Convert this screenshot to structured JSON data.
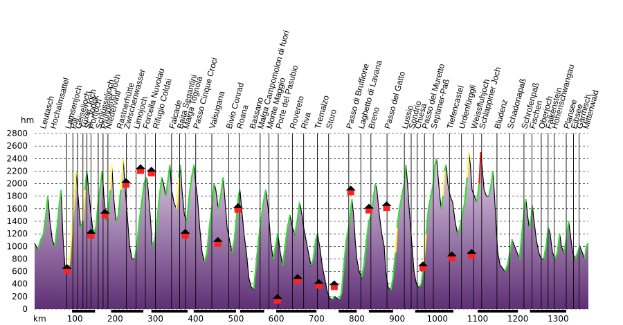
{
  "chart_data": {
    "type": "area",
    "title": "",
    "xlabel": "km",
    "ylabel": "hm",
    "xlim": [
      0,
      1375
    ],
    "ylim": [
      0,
      2800
    ],
    "y_ticks": [
      0,
      200,
      400,
      600,
      800,
      1000,
      1200,
      1400,
      1600,
      1800,
      2000,
      2200,
      2400,
      2600,
      2800
    ],
    "x_ticks": [
      100,
      200,
      300,
      400,
      500,
      600,
      700,
      800,
      900,
      1000,
      1100,
      1200,
      1300
    ],
    "grid": true,
    "colors": {
      "fill_top": "#e6d4ec",
      "fill_bottom": "#5e2f74",
      "profile_line": "#000000",
      "gradient_easy": "#33dd33",
      "gradient_medium": "#ffff44",
      "gradient_steep": "#ee1111",
      "hut_roof": "#000000",
      "hut_body": "#ff2020",
      "km_bar": "#000000"
    },
    "profile": [
      [
        0,
        1050
      ],
      [
        8,
        950
      ],
      [
        15,
        1100
      ],
      [
        22,
        1200
      ],
      [
        28,
        1500
      ],
      [
        33,
        1800
      ],
      [
        38,
        1400
      ],
      [
        44,
        1100
      ],
      [
        50,
        1000
      ],
      [
        56,
        1300
      ],
      [
        62,
        1700
      ],
      [
        66,
        1900
      ],
      [
        70,
        1200
      ],
      [
        75,
        700
      ],
      [
        80,
        600
      ],
      [
        86,
        700
      ],
      [
        92,
        1200
      ],
      [
        98,
        1700
      ],
      [
        103,
        2200
      ],
      [
        108,
        1800
      ],
      [
        114,
        1300
      ],
      [
        120,
        1400
      ],
      [
        125,
        1900
      ],
      [
        130,
        2200
      ],
      [
        134,
        1900
      ],
      [
        140,
        1500
      ],
      [
        146,
        1200
      ],
      [
        152,
        1300
      ],
      [
        158,
        1700
      ],
      [
        164,
        2000
      ],
      [
        168,
        2200
      ],
      [
        172,
        1800
      ],
      [
        178,
        1400
      ],
      [
        183,
        1500
      ],
      [
        188,
        1900
      ],
      [
        192,
        2300
      ],
      [
        196,
        1800
      ],
      [
        202,
        1400
      ],
      [
        208,
        1500
      ],
      [
        214,
        1900
      ],
      [
        220,
        2400
      ],
      [
        224,
        2000
      ],
      [
        230,
        1500
      ],
      [
        236,
        1000
      ],
      [
        242,
        800
      ],
      [
        248,
        800
      ],
      [
        254,
        1000
      ],
      [
        260,
        1400
      ],
      [
        266,
        1700
      ],
      [
        272,
        2000
      ],
      [
        278,
        2100
      ],
      [
        282,
        1900
      ],
      [
        288,
        1400
      ],
      [
        292,
        1000
      ],
      [
        298,
        1100
      ],
      [
        304,
        1400
      ],
      [
        310,
        1800
      ],
      [
        316,
        2100
      ],
      [
        320,
        2000
      ],
      [
        326,
        1800
      ],
      [
        332,
        2100
      ],
      [
        336,
        2300
      ],
      [
        340,
        1900
      ],
      [
        346,
        1700
      ],
      [
        352,
        1600
      ],
      [
        358,
        2100
      ],
      [
        362,
        2300
      ],
      [
        366,
        1900
      ],
      [
        372,
        1500
      ],
      [
        378,
        1400
      ],
      [
        384,
        1800
      ],
      [
        390,
        2100
      ],
      [
        396,
        2300
      ],
      [
        400,
        2000
      ],
      [
        404,
        1800
      ],
      [
        410,
        1300
      ],
      [
        416,
        900
      ],
      [
        422,
        750
      ],
      [
        428,
        900
      ],
      [
        434,
        1300
      ],
      [
        440,
        1600
      ],
      [
        446,
        2000
      ],
      [
        450,
        1900
      ],
      [
        456,
        1600
      ],
      [
        462,
        1800
      ],
      [
        468,
        2100
      ],
      [
        472,
        1800
      ],
      [
        478,
        1300
      ],
      [
        484,
        1100
      ],
      [
        490,
        900
      ],
      [
        496,
        1100
      ],
      [
        502,
        1500
      ],
      [
        506,
        1800
      ],
      [
        510,
        1900
      ],
      [
        514,
        1600
      ],
      [
        520,
        1200
      ],
      [
        526,
        900
      ],
      [
        532,
        500
      ],
      [
        538,
        350
      ],
      [
        544,
        320
      ],
      [
        550,
        700
      ],
      [
        556,
        1100
      ],
      [
        562,
        1400
      ],
      [
        568,
        1700
      ],
      [
        574,
        1900
      ],
      [
        580,
        1600
      ],
      [
        586,
        1100
      ],
      [
        592,
        800
      ],
      [
        598,
        1000
      ],
      [
        604,
        1200
      ],
      [
        610,
        900
      ],
      [
        616,
        700
      ],
      [
        622,
        1000
      ],
      [
        628,
        1300
      ],
      [
        634,
        1500
      ],
      [
        640,
        1300
      ],
      [
        646,
        1200
      ],
      [
        652,
        1400
      ],
      [
        658,
        1700
      ],
      [
        664,
        1500
      ],
      [
        668,
        1300
      ],
      [
        674,
        1100
      ],
      [
        680,
        900
      ],
      [
        686,
        700
      ],
      [
        692,
        800
      ],
      [
        698,
        1100
      ],
      [
        702,
        1200
      ],
      [
        708,
        1000
      ],
      [
        714,
        700
      ],
      [
        720,
        500
      ],
      [
        726,
        300
      ],
      [
        732,
        180
      ],
      [
        738,
        150
      ],
      [
        744,
        200
      ],
      [
        750,
        180
      ],
      [
        756,
        150
      ],
      [
        762,
        250
      ],
      [
        768,
        700
      ],
      [
        774,
        1100
      ],
      [
        780,
        1300
      ],
      [
        784,
        1500
      ],
      [
        788,
        1750
      ],
      [
        792,
        1500
      ],
      [
        796,
        1100
      ],
      [
        800,
        800
      ],
      [
        806,
        600
      ],
      [
        812,
        500
      ],
      [
        818,
        700
      ],
      [
        824,
        1100
      ],
      [
        830,
        1400
      ],
      [
        836,
        1500
      ],
      [
        842,
        1800
      ],
      [
        846,
        2000
      ],
      [
        850,
        1900
      ],
      [
        856,
        1500
      ],
      [
        862,
        1200
      ],
      [
        868,
        1000
      ],
      [
        872,
        600
      ],
      [
        878,
        350
      ],
      [
        884,
        300
      ],
      [
        890,
        500
      ],
      [
        896,
        900
      ],
      [
        900,
        1300
      ],
      [
        906,
        1600
      ],
      [
        912,
        1800
      ],
      [
        918,
        2000
      ],
      [
        922,
        2300
      ],
      [
        926,
        2000
      ],
      [
        930,
        1600
      ],
      [
        936,
        1100
      ],
      [
        942,
        600
      ],
      [
        948,
        400
      ],
      [
        954,
        350
      ],
      [
        960,
        400
      ],
      [
        966,
        700
      ],
      [
        972,
        1200
      ],
      [
        978,
        1600
      ],
      [
        984,
        1800
      ],
      [
        990,
        2000
      ],
      [
        994,
        2300
      ],
      [
        998,
        2400
      ],
      [
        1002,
        2100
      ],
      [
        1006,
        1800
      ],
      [
        1010,
        1600
      ],
      [
        1014,
        1800
      ],
      [
        1018,
        2200
      ],
      [
        1022,
        2300
      ],
      [
        1026,
        2000
      ],
      [
        1032,
        1800
      ],
      [
        1038,
        1700
      ],
      [
        1044,
        1400
      ],
      [
        1050,
        1200
      ],
      [
        1056,
        1300
      ],
      [
        1062,
        1500
      ],
      [
        1068,
        1700
      ],
      [
        1074,
        2100
      ],
      [
        1078,
        2500
      ],
      [
        1082,
        2300
      ],
      [
        1086,
        1900
      ],
      [
        1092,
        1800
      ],
      [
        1098,
        1700
      ],
      [
        1104,
        2000
      ],
      [
        1108,
        2500
      ],
      [
        1112,
        2200
      ],
      [
        1116,
        1900
      ],
      [
        1122,
        1800
      ],
      [
        1128,
        1800
      ],
      [
        1134,
        2000
      ],
      [
        1138,
        2200
      ],
      [
        1142,
        1800
      ],
      [
        1146,
        1300
      ],
      [
        1150,
        900
      ],
      [
        1156,
        700
      ],
      [
        1162,
        650
      ],
      [
        1168,
        600
      ],
      [
        1174,
        700
      ],
      [
        1180,
        900
      ],
      [
        1186,
        1100
      ],
      [
        1192,
        1000
      ],
      [
        1198,
        900
      ],
      [
        1204,
        800
      ],
      [
        1210,
        1200
      ],
      [
        1216,
        1600
      ],
      [
        1220,
        1750
      ],
      [
        1224,
        1500
      ],
      [
        1228,
        1300
      ],
      [
        1232,
        1400
      ],
      [
        1236,
        1650
      ],
      [
        1240,
        1400
      ],
      [
        1246,
        1100
      ],
      [
        1252,
        900
      ],
      [
        1258,
        800
      ],
      [
        1264,
        800
      ],
      [
        1270,
        1000
      ],
      [
        1276,
        1300
      ],
      [
        1280,
        1200
      ],
      [
        1286,
        900
      ],
      [
        1292,
        800
      ],
      [
        1298,
        900
      ],
      [
        1304,
        1200
      ],
      [
        1308,
        1000
      ],
      [
        1314,
        900
      ],
      [
        1320,
        1100
      ],
      [
        1326,
        1400
      ],
      [
        1330,
        1200
      ],
      [
        1336,
        900
      ],
      [
        1342,
        800
      ],
      [
        1348,
        900
      ],
      [
        1354,
        1000
      ],
      [
        1360,
        900
      ],
      [
        1366,
        800
      ],
      [
        1370,
        1000
      ],
      [
        1375,
        1050
      ]
    ],
    "huts": [
      [
        80,
        620
      ],
      [
        140,
        1180
      ],
      [
        175,
        1500
      ],
      [
        227,
        1990
      ],
      [
        263,
        2210
      ],
      [
        290,
        2170
      ],
      [
        374,
        1180
      ],
      [
        455,
        1050
      ],
      [
        505,
        1590
      ],
      [
        603,
        140
      ],
      [
        653,
        460
      ],
      [
        706,
        380
      ],
      [
        744,
        360
      ],
      [
        785,
        1870
      ],
      [
        830,
        1580
      ],
      [
        874,
        1620
      ],
      [
        964,
        660
      ],
      [
        1036,
        820
      ],
      [
        1085,
        860
      ]
    ],
    "places": [
      "Leutasch",
      "Hochalmsattel",
      "Lamsenjoch",
      "Pill",
      "Geiseljoch",
      "Tuxer Joch",
      "St. Jodok",
      "Portjoch",
      "Schlüsseljoch",
      "Pfunderer Joch",
      "Niedervintl",
      "Rastnerhütte",
      "Zwischenwasser",
      "Limojoch",
      "Forcella Nuvolau",
      "Rifugio Coldai",
      "Falcade",
      "Baita Segantini",
      "Malga Tognola",
      "Passo Cinque Croci",
      "Valsugana",
      "Bivio Conrad",
      "Roana",
      "Bassano",
      "Malga Campomolon di fuori",
      "Monte Maggio",
      "Porte del Pasubio",
      "Rovereto",
      "Riva",
      "Tremalzo",
      "Storo",
      "Passo di Bruffione",
      "Laghetto di Lavana",
      "Breno",
      "Passo del Gatto",
      "Lussio",
      "Sondrio",
      "Chiesa",
      "Passo del Muretto",
      "Septimer-Paß",
      "Tiefencastel",
      "Urdenfürggli",
      "Weissfluhjoch",
      "Schlappiner Joch",
      "Bludenz",
      "Schadonapaß",
      "Schrofenpaß",
      "Fischen",
      "Oberjoch",
      "Falkenstein",
      "Hohenschwangau",
      "Plansee",
      "Eibsee",
      "Garmisch",
      "Mittenwald"
    ],
    "place_km": [
      20,
      45,
      82,
      95,
      107,
      120,
      130,
      140,
      158,
      170,
      182,
      210,
      228,
      252,
      275,
      300,
      340,
      360,
      375,
      400,
      440,
      482,
      508,
      540,
      560,
      582,
      605,
      640,
      668,
      702,
      730,
      780,
      810,
      835,
      875,
      918,
      935,
      950,
      968,
      990,
      1030,
      1060,
      1090,
      1110,
      1148,
      1180,
      1215,
      1235,
      1258,
      1275,
      1290,
      1320,
      1338,
      1352,
      1368
    ],
    "marker_km": [
      80,
      95,
      107,
      120,
      130,
      140,
      158,
      170,
      182,
      228,
      252,
      275,
      300,
      340,
      360,
      375,
      400,
      440,
      482,
      508,
      560,
      582,
      605,
      640,
      668,
      702,
      730,
      780,
      810,
      835,
      875,
      918,
      935,
      950,
      968,
      990,
      1030,
      1060,
      1090,
      1110,
      1148,
      1180,
      1215,
      1235,
      1258,
      1275,
      1290,
      1320,
      1338,
      1352
    ],
    "km_bar": [
      [
        93,
        150
      ],
      [
        190,
        270
      ],
      [
        290,
        380
      ],
      [
        395,
        500
      ],
      [
        510,
        570
      ],
      [
        600,
        700
      ],
      [
        755,
        800
      ],
      [
        830,
        890
      ],
      [
        945,
        1040
      ],
      [
        1100,
        1200
      ],
      [
        1230,
        1320
      ]
    ]
  }
}
